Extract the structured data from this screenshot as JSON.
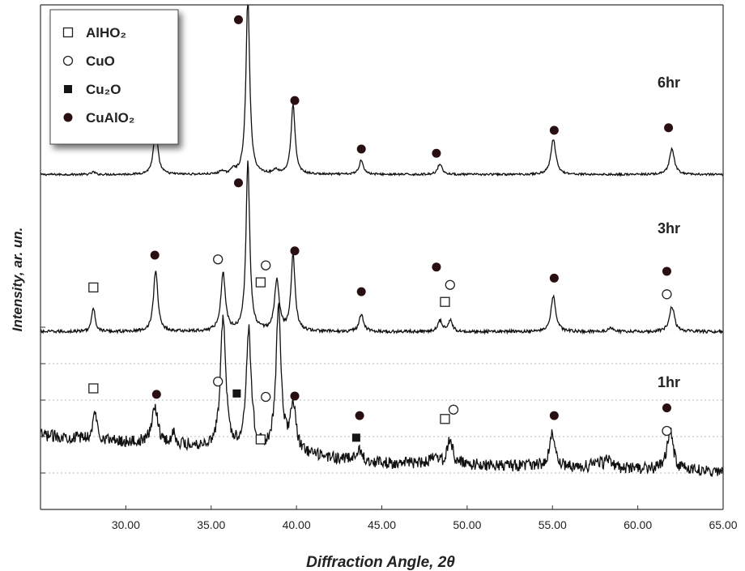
{
  "chart_data": {
    "type": "line",
    "title": "",
    "xlabel": "Diffraction Angle, 2θ",
    "ylabel": "Intensity, ar. un.",
    "xlim": [
      25.0,
      65.0
    ],
    "x_ticks": [
      "30.00",
      "35.00",
      "40.00",
      "45.00",
      "50.00",
      "55.00",
      "60.00",
      "65.00"
    ],
    "grid": "horizontal dotted",
    "legend": {
      "placement": "top-left",
      "entries": [
        {
          "key": "AlHO2",
          "label": "AlHO₂",
          "marker": "open-square"
        },
        {
          "key": "CuO",
          "label": "CuO",
          "marker": "open-circle"
        },
        {
          "key": "Cu2O",
          "label": "Cu₂O",
          "marker": "filled-square"
        },
        {
          "key": "CuAlO2",
          "label": "CuAlO₂",
          "marker": "filled-circle"
        }
      ]
    },
    "series": [
      {
        "name": "6hr",
        "baseline": 0.1,
        "noise": 0.012,
        "peaks": [
          {
            "x": 28.1,
            "h": 0.03,
            "w": 0.12
          },
          {
            "x": 31.75,
            "h": 0.55,
            "w": 0.15
          },
          {
            "x": 35.6,
            "h": 0.04,
            "w": 0.12
          },
          {
            "x": 36.3,
            "h": 0.06,
            "w": 0.12
          },
          {
            "x": 37.15,
            "h": 2.1,
            "w": 0.13
          },
          {
            "x": 38.8,
            "h": 0.05,
            "w": 0.15
          },
          {
            "x": 39.8,
            "h": 0.82,
            "w": 0.14
          },
          {
            "x": 43.8,
            "h": 0.17,
            "w": 0.15
          },
          {
            "x": 48.4,
            "h": 0.13,
            "w": 0.15
          },
          {
            "x": 55.05,
            "h": 0.42,
            "w": 0.17
          },
          {
            "x": 62.0,
            "h": 0.3,
            "w": 0.17
          }
        ],
        "markers": [
          {
            "type": "CuAlO2",
            "x": 31.7,
            "y": 0.82
          },
          {
            "type": "CuAlO2",
            "x": 36.6,
            "y": 1.92
          },
          {
            "type": "CuAlO2",
            "x": 39.9,
            "y": 0.97
          },
          {
            "type": "CuAlO2",
            "x": 43.8,
            "y": 0.4
          },
          {
            "type": "CuAlO2",
            "x": 48.2,
            "y": 0.35
          },
          {
            "type": "CuAlO2",
            "x": 55.1,
            "y": 0.62
          },
          {
            "type": "CuAlO2",
            "x": 61.8,
            "y": 0.65
          }
        ]
      },
      {
        "name": "3hr",
        "baseline": 0.1,
        "noise": 0.018,
        "peaks": [
          {
            "x": 28.1,
            "h": 0.28,
            "w": 0.12
          },
          {
            "x": 31.75,
            "h": 0.72,
            "w": 0.15
          },
          {
            "x": 35.7,
            "h": 0.68,
            "w": 0.16
          },
          {
            "x": 37.15,
            "h": 2.0,
            "w": 0.13
          },
          {
            "x": 38.85,
            "h": 0.6,
            "w": 0.16
          },
          {
            "x": 39.8,
            "h": 0.9,
            "w": 0.14
          },
          {
            "x": 43.8,
            "h": 0.2,
            "w": 0.15
          },
          {
            "x": 48.4,
            "h": 0.13,
            "w": 0.15
          },
          {
            "x": 49.0,
            "h": 0.13,
            "w": 0.15
          },
          {
            "x": 55.05,
            "h": 0.42,
            "w": 0.17
          },
          {
            "x": 58.4,
            "h": 0.04,
            "w": 0.2
          },
          {
            "x": 62.0,
            "h": 0.3,
            "w": 0.17
          }
        ],
        "markers": [
          {
            "type": "AlHO2",
            "x": 28.1,
            "y": 0.62
          },
          {
            "type": "CuAlO2",
            "x": 31.7,
            "y": 1.0
          },
          {
            "type": "CuO",
            "x": 35.4,
            "y": 0.95
          },
          {
            "type": "CuAlO2",
            "x": 36.6,
            "y": 1.85
          },
          {
            "type": "AlHO2",
            "x": 37.9,
            "y": 0.68
          },
          {
            "type": "CuO",
            "x": 38.2,
            "y": 0.88
          },
          {
            "type": "CuAlO2",
            "x": 39.9,
            "y": 1.05
          },
          {
            "type": "CuAlO2",
            "x": 43.8,
            "y": 0.57
          },
          {
            "type": "CuAlO2",
            "x": 48.2,
            "y": 0.86
          },
          {
            "type": "CuO",
            "x": 49.0,
            "y": 0.65
          },
          {
            "type": "AlHO2",
            "x": 48.7,
            "y": 0.45
          },
          {
            "type": "CuAlO2",
            "x": 55.1,
            "y": 0.73
          },
          {
            "type": "CuAlO2",
            "x": 61.7,
            "y": 0.81
          },
          {
            "type": "CuO",
            "x": 61.7,
            "y": 0.54
          }
        ]
      },
      {
        "name": "1hr",
        "baseline": 0.55,
        "noise": 0.07,
        "trend": [
          {
            "x": 25.0,
            "y": 0.55
          },
          {
            "x": 30.0,
            "y": 0.47
          },
          {
            "x": 34.0,
            "y": 0.42
          },
          {
            "x": 40.0,
            "y": 0.32
          },
          {
            "x": 45.0,
            "y": 0.22
          },
          {
            "x": 55.0,
            "y": 0.18
          },
          {
            "x": 65.0,
            "y": 0.12
          }
        ],
        "peaks": [
          {
            "x": 28.2,
            "h": 0.32,
            "w": 0.14
          },
          {
            "x": 31.7,
            "h": 0.45,
            "w": 0.2
          },
          {
            "x": 32.8,
            "h": 0.14,
            "w": 0.12
          },
          {
            "x": 35.7,
            "h": 1.55,
            "w": 0.18
          },
          {
            "x": 37.2,
            "h": 1.4,
            "w": 0.18
          },
          {
            "x": 38.95,
            "h": 1.7,
            "w": 0.18
          },
          {
            "x": 39.8,
            "h": 0.55,
            "w": 0.2
          },
          {
            "x": 43.7,
            "h": 0.12,
            "w": 0.2
          },
          {
            "x": 48.0,
            "h": 0.08,
            "w": 0.25
          },
          {
            "x": 49.0,
            "h": 0.3,
            "w": 0.18
          },
          {
            "x": 55.0,
            "h": 0.38,
            "w": 0.2
          },
          {
            "x": 57.6,
            "h": 0.1,
            "w": 0.2
          },
          {
            "x": 58.3,
            "h": 0.12,
            "w": 0.2
          },
          {
            "x": 61.9,
            "h": 0.5,
            "w": 0.2
          }
        ],
        "markers": [
          {
            "type": "AlHO2",
            "x": 28.1,
            "y": 1.1
          },
          {
            "type": "CuAlO2",
            "x": 31.8,
            "y": 1.03
          },
          {
            "type": "CuO",
            "x": 35.4,
            "y": 1.18
          },
          {
            "type": "Cu2O",
            "x": 36.5,
            "y": 1.04
          },
          {
            "type": "CuO",
            "x": 38.2,
            "y": 1.0
          },
          {
            "type": "AlHO2",
            "x": 37.9,
            "y": 0.5
          },
          {
            "type": "CuAlO2",
            "x": 39.9,
            "y": 1.01
          },
          {
            "type": "CuAlO2",
            "x": 43.7,
            "y": 0.78
          },
          {
            "type": "Cu2O",
            "x": 43.5,
            "y": 0.52
          },
          {
            "type": "AlHO2",
            "x": 48.7,
            "y": 0.74
          },
          {
            "type": "CuO",
            "x": 49.2,
            "y": 0.85
          },
          {
            "type": "CuAlO2",
            "x": 55.1,
            "y": 0.78
          },
          {
            "type": "CuAlO2",
            "x": 61.7,
            "y": 0.87
          },
          {
            "type": "CuO",
            "x": 61.7,
            "y": 0.6
          }
        ]
      }
    ]
  }
}
